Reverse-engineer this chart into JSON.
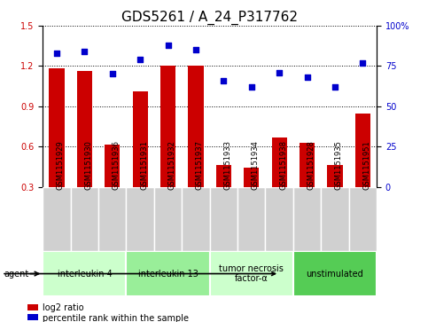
{
  "title": "GDS5261 / A_24_P317762",
  "samples": [
    "GSM1151929",
    "GSM1151930",
    "GSM1151936",
    "GSM1151931",
    "GSM1151932",
    "GSM1151937",
    "GSM1151933",
    "GSM1151934",
    "GSM1151938",
    "GSM1151928",
    "GSM1151935",
    "GSM1151951"
  ],
  "log2_ratio": [
    1.185,
    1.165,
    0.615,
    1.01,
    1.205,
    1.205,
    0.465,
    0.445,
    0.67,
    0.625,
    0.465,
    0.845
  ],
  "percentile_rank": [
    83,
    84,
    70,
    79,
    88,
    85,
    66,
    62,
    71,
    68,
    62,
    77
  ],
  "bar_color": "#cc0000",
  "dot_color": "#0000cc",
  "ylim_left": [
    0.3,
    1.5
  ],
  "ylim_right": [
    0,
    100
  ],
  "yticks_left": [
    0.3,
    0.6,
    0.9,
    1.2,
    1.5
  ],
  "yticks_right": [
    0,
    25,
    50,
    75,
    100
  ],
  "ytick_labels_right": [
    "0",
    "25",
    "50",
    "75",
    "100%"
  ],
  "groups": [
    {
      "label": "interleukin 4",
      "indices": [
        0,
        1,
        2
      ],
      "color": "#ccffcc"
    },
    {
      "label": "interleukin 13",
      "indices": [
        3,
        4,
        5
      ],
      "color": "#99ee99"
    },
    {
      "label": "tumor necrosis\nfactor-α",
      "indices": [
        6,
        7,
        8
      ],
      "color": "#ccffcc"
    },
    {
      "label": "unstimulated",
      "indices": [
        9,
        10,
        11
      ],
      "color": "#55cc55"
    }
  ],
  "agent_label": "agent",
  "legend_bar_label": "log2 ratio",
  "legend_dot_label": "percentile rank within the sample",
  "bar_width": 0.55,
  "title_fontsize": 11,
  "sample_box_color": "#d0d0d0",
  "tick_fontsize": 7,
  "label_fontsize": 7
}
